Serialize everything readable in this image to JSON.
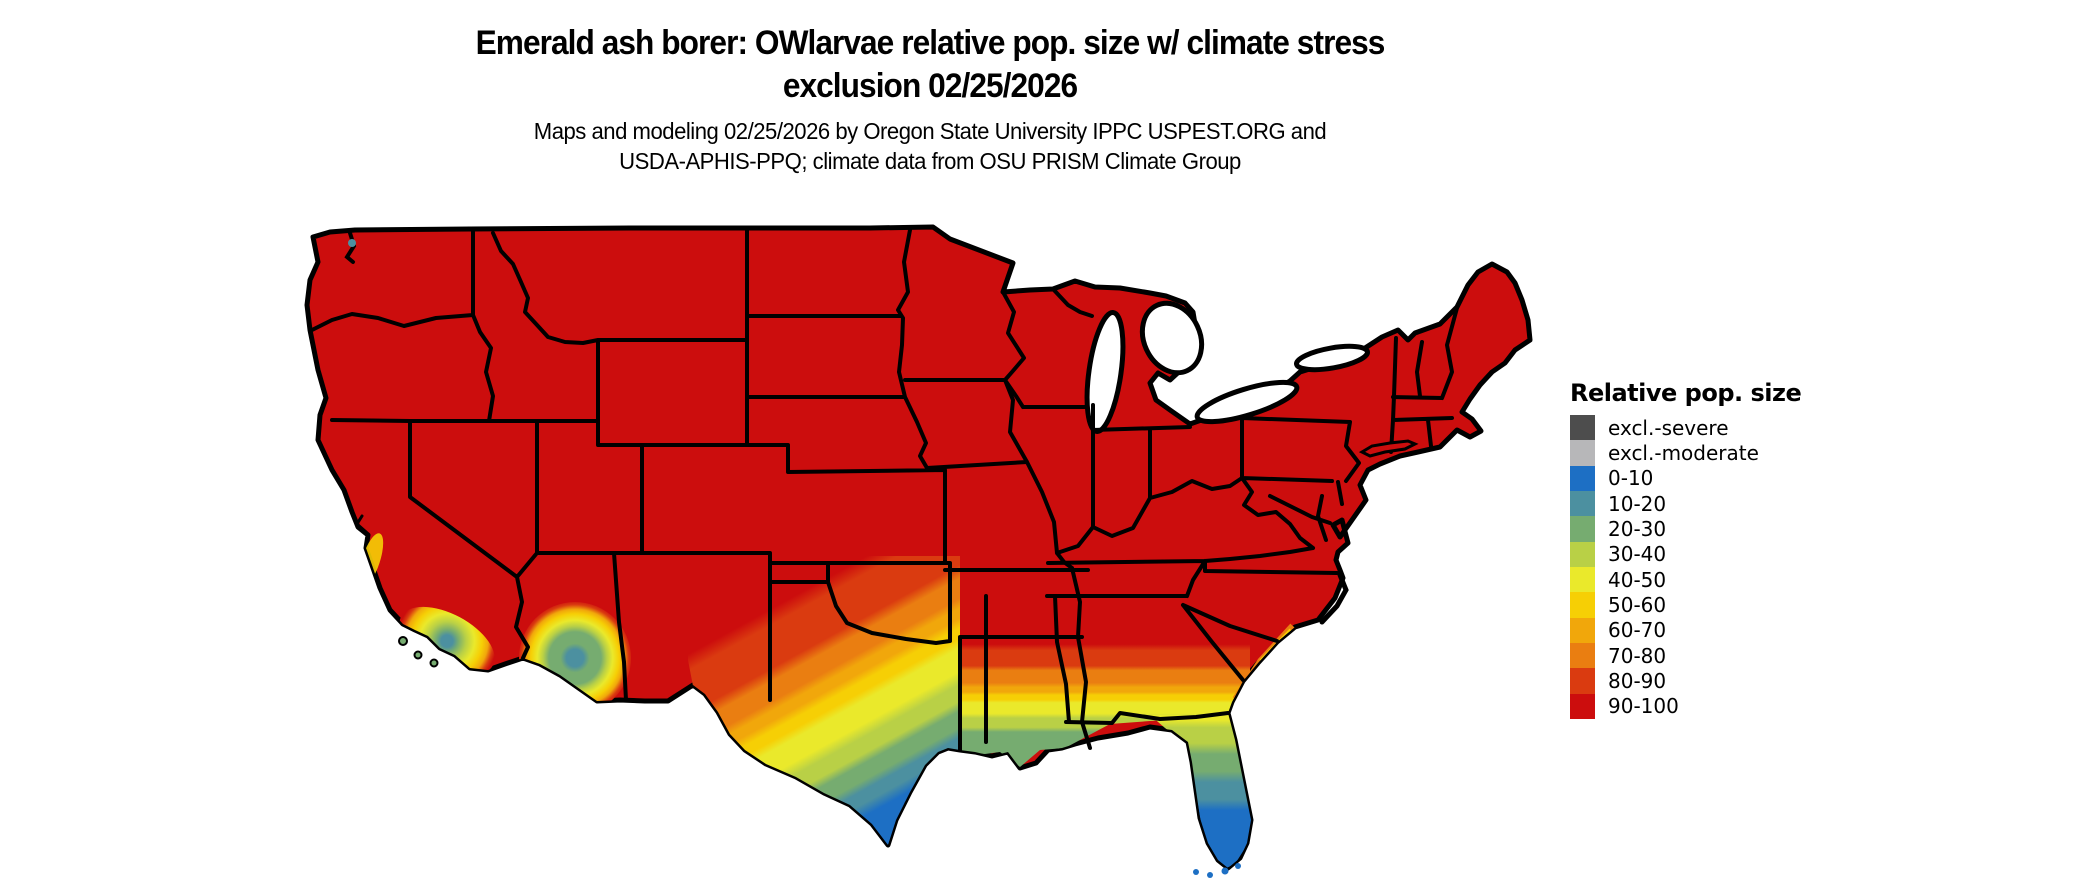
{
  "title": {
    "line1": "Emerald ash borer: OWlarvae relative pop. size w/ climate stress",
    "line2": "exclusion 02/25/2026"
  },
  "subtitle": {
    "line1": "Maps and modeling 02/25/2026 by Oregon State University IPPC USPEST.ORG and",
    "line2": "USDA-APHIS-PPQ; climate data from OSU PRISM Climate Group"
  },
  "legend": {
    "title": "Relative pop. size",
    "items": [
      {
        "label": "excl.-severe",
        "color": "#4D4D4D"
      },
      {
        "label": "excl.-moderate",
        "color": "#B7B7B9"
      },
      {
        "label": "0-10",
        "color": "#1D6FC4"
      },
      {
        "label": "10-20",
        "color": "#4C90A0"
      },
      {
        "label": "20-30",
        "color": "#76AC70"
      },
      {
        "label": "30-40",
        "color": "#B9D046"
      },
      {
        "label": "40-50",
        "color": "#EAE92B"
      },
      {
        "label": "50-60",
        "color": "#F6CF05"
      },
      {
        "label": "60-70",
        "color": "#F1A70B"
      },
      {
        "label": "70-80",
        "color": "#EA7E11"
      },
      {
        "label": "80-90",
        "color": "#DA3B10"
      },
      {
        "label": "90-100",
        "color": "#CC0D0D"
      }
    ]
  },
  "map": {
    "colors": {
      "excl_severe": "#4D4D4D",
      "excl_moderate": "#B7B7B9",
      "b0": "#1D6FC4",
      "b1": "#4C90A0",
      "b2": "#76AC70",
      "b3": "#B9D046",
      "b4": "#EAE92B",
      "b5": "#F6CF05",
      "b6": "#F1A70B",
      "b7": "#EA7E11",
      "b8": "#DA3B10",
      "b9": "#CC0D0D",
      "border": "#000000",
      "water": "#FFFFFF"
    }
  }
}
